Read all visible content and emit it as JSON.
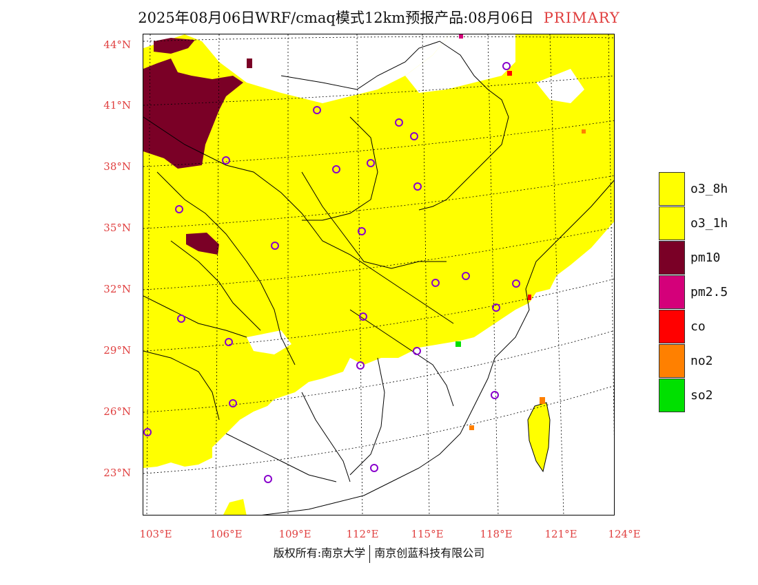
{
  "title": {
    "text": "2025年08月06日WRF/cmaq模式12km预报产品:08月06日",
    "tag": "PRIMARY"
  },
  "axes": {
    "lat_labels": [
      "44°N",
      "41°N",
      "38°N",
      "35°N",
      "32°N",
      "29°N",
      "26°N",
      "23°N"
    ],
    "lon_labels": [
      "103°E",
      "106°E",
      "109°E",
      "112°E",
      "115°E",
      "118°E",
      "121°E",
      "124°E"
    ]
  },
  "legend": [
    {
      "label": "o3_8h",
      "color": "#ffff00"
    },
    {
      "label": "o3_1h",
      "color": "#ffff00"
    },
    {
      "label": "pm10",
      "color": "#7a0026"
    },
    {
      "label": "pm2.5",
      "color": "#d4007a"
    },
    {
      "label": "co",
      "color": "#ff0000"
    },
    {
      "label": "no2",
      "color": "#ff8000"
    },
    {
      "label": "so2",
      "color": "#00e000"
    }
  ],
  "footer": {
    "left": "版权所有:南京大学",
    "right": "南京创蓝科技有限公司"
  },
  "colors": {
    "o3": "#ffff00",
    "pm10": "#7a0026",
    "pm25": "#d4007a",
    "co": "#ff0000",
    "no2": "#ff8000",
    "so2": "#00e000",
    "city_marker": "#8800cc",
    "axis_label": "#e04040"
  }
}
